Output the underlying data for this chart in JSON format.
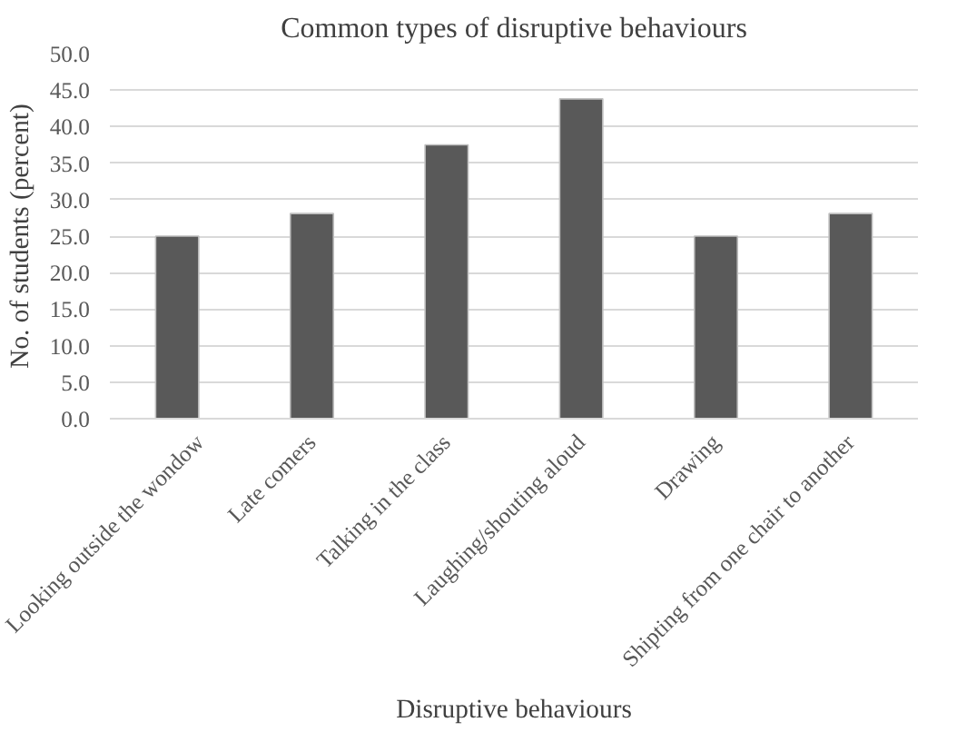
{
  "chart_data": {
    "type": "bar",
    "title": "Common types of disruptive behaviours",
    "xlabel": "Disruptive behaviours",
    "ylabel": "No. of students (percent)",
    "categories": [
      "Looking outside the wondow",
      "Late comers",
      "Talking in the class",
      "Laughing/shouting aloud",
      "Drawing",
      "Shipting from one chair to another"
    ],
    "values": [
      25.0,
      28.1,
      37.5,
      43.8,
      25.0,
      28.1
    ],
    "color": "#595959",
    "ylim": [
      0,
      50
    ],
    "yticks": [
      {
        "value": 0,
        "label": "0.0"
      },
      {
        "value": 5,
        "label": "5.0"
      },
      {
        "value": 10,
        "label": "10.0"
      },
      {
        "value": 15,
        "label": "15.0"
      },
      {
        "value": 20,
        "label": "20.0"
      },
      {
        "value": 25,
        "label": "25.0"
      },
      {
        "value": 30,
        "label": "30.0"
      },
      {
        "value": 35,
        "label": "35.0"
      },
      {
        "value": 40,
        "label": "40.0"
      },
      {
        "value": 45,
        "label": "45.0"
      },
      {
        "value": 50,
        "label": "50.0"
      }
    ],
    "grid": "y"
  }
}
